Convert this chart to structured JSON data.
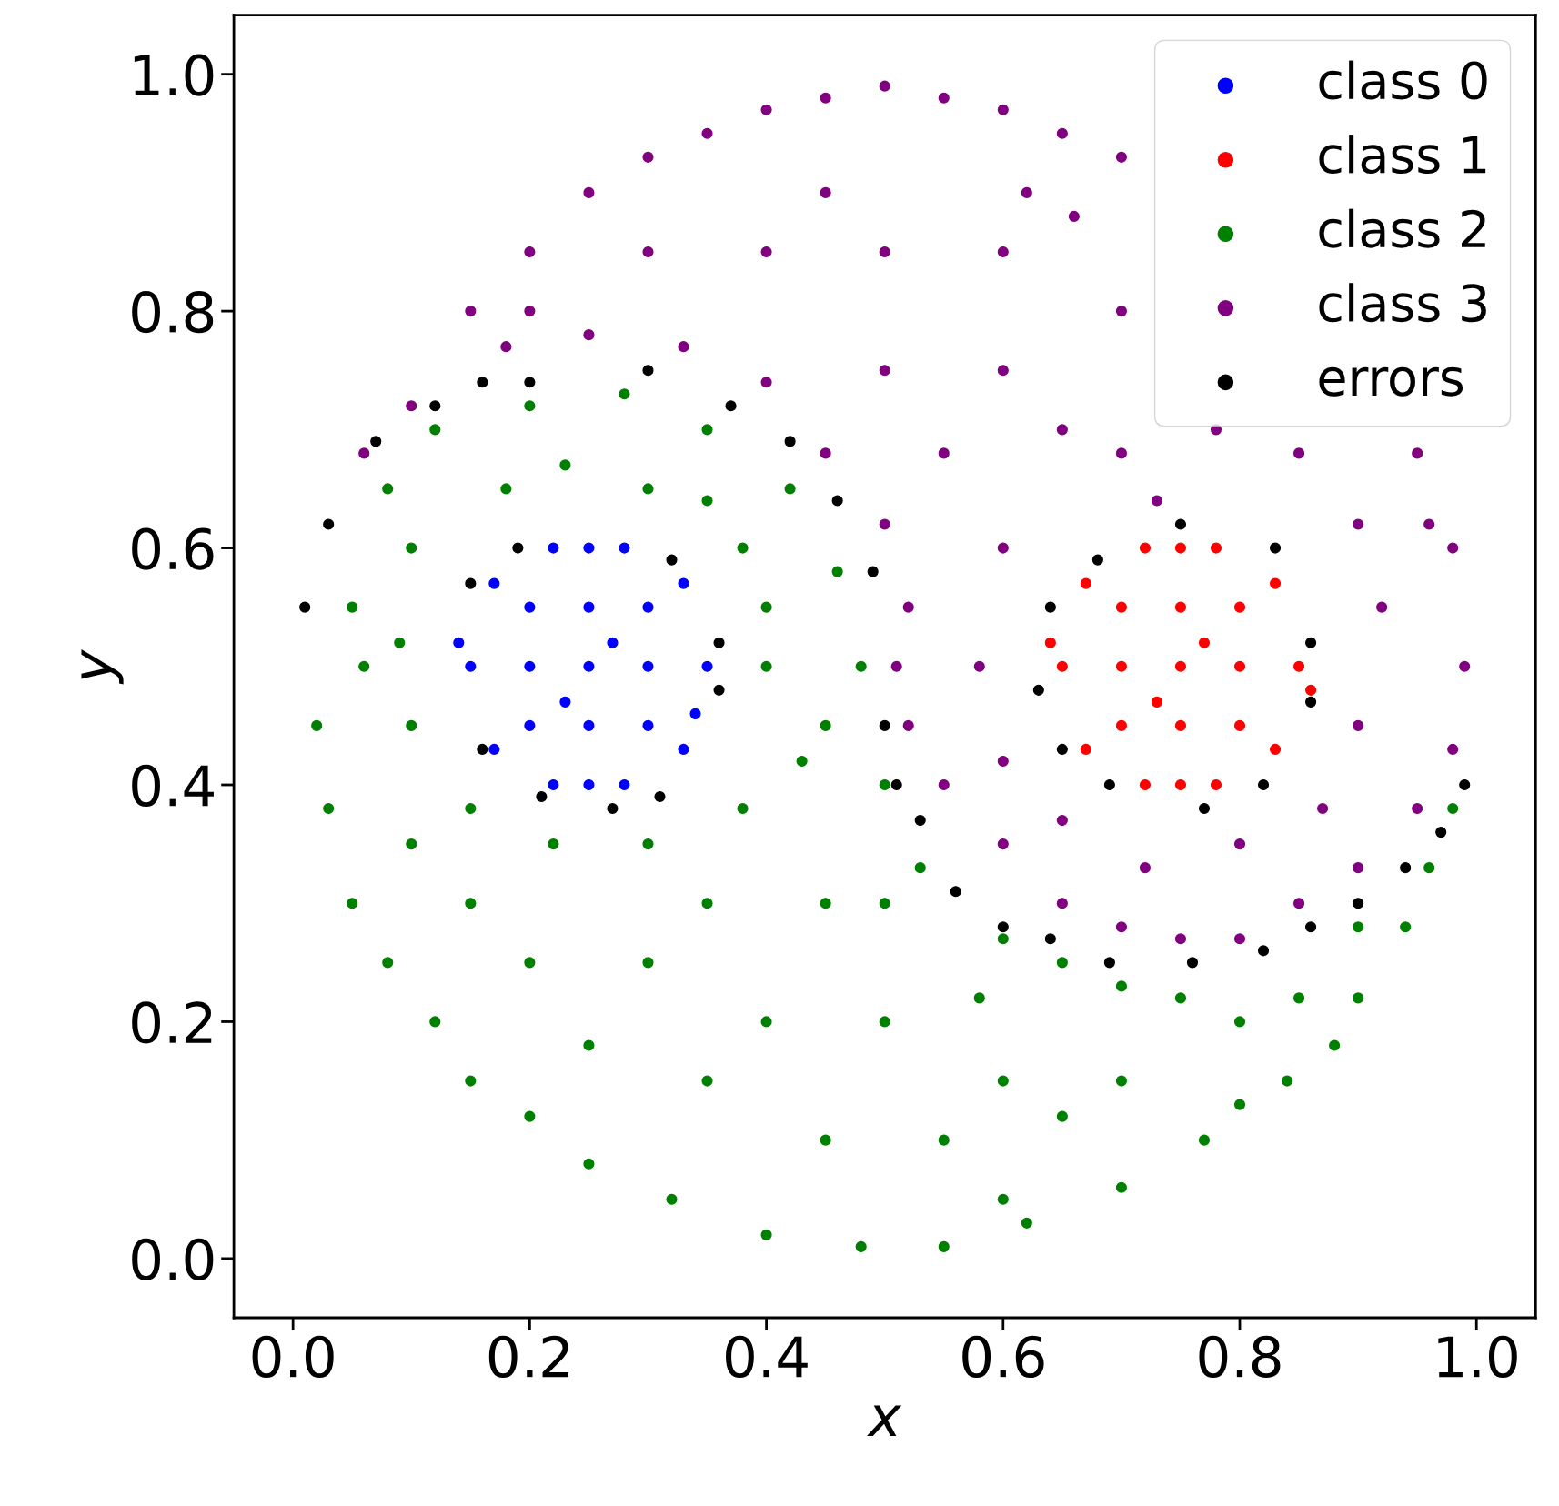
{
  "chart_data": {
    "type": "scatter",
    "xlabel": "x",
    "ylabel": "y",
    "xlim": [
      -0.05,
      1.05
    ],
    "ylim": [
      -0.05,
      1.05
    ],
    "xticks": [
      {
        "value": 0,
        "label": "0.0"
      },
      {
        "value": 0.2,
        "label": "0.2"
      },
      {
        "value": 0.4,
        "label": "0.4"
      },
      {
        "value": 0.6,
        "label": "0.6"
      },
      {
        "value": 0.8,
        "label": "0.8"
      },
      {
        "value": 1,
        "label": "1.0"
      }
    ],
    "yticks": [
      {
        "value": 0,
        "label": "0.0"
      },
      {
        "value": 0.2,
        "label": "0.2"
      },
      {
        "value": 0.4,
        "label": "0.4"
      },
      {
        "value": 0.6,
        "label": "0.6"
      },
      {
        "value": 0.8,
        "label": "0.8"
      },
      {
        "value": 1,
        "label": "1.0"
      }
    ],
    "grid": false,
    "legend": "top right",
    "marker": "circle",
    "series": [
      {
        "name": "class 0",
        "color": "#0000ff",
        "x": [
          0.25,
          0.2,
          0.3,
          0.2,
          0.3,
          0.25,
          0.25,
          0.15,
          0.35,
          0.17,
          0.33,
          0.17,
          0.33,
          0.22,
          0.28,
          0.22,
          0.28,
          0.14,
          0.34,
          0.25,
          0.25,
          0.2,
          0.3,
          0.27,
          0.23
        ],
        "values": [
          0.5,
          0.55,
          0.55,
          0.45,
          0.45,
          0.6,
          0.4,
          0.5,
          0.5,
          0.57,
          0.57,
          0.43,
          0.43,
          0.6,
          0.6,
          0.4,
          0.4,
          0.52,
          0.46,
          0.55,
          0.45,
          0.5,
          0.5,
          0.52,
          0.47
        ]
      },
      {
        "name": "class 1",
        "color": "#ff0000",
        "x": [
          0.75,
          0.7,
          0.8,
          0.7,
          0.8,
          0.75,
          0.75,
          0.65,
          0.85,
          0.67,
          0.83,
          0.67,
          0.83,
          0.72,
          0.78,
          0.72,
          0.78,
          0.64,
          0.86,
          0.75,
          0.75,
          0.7,
          0.8,
          0.77,
          0.73
        ],
        "values": [
          0.5,
          0.55,
          0.55,
          0.45,
          0.45,
          0.6,
          0.4,
          0.5,
          0.5,
          0.57,
          0.57,
          0.43,
          0.43,
          0.6,
          0.6,
          0.4,
          0.4,
          0.52,
          0.48,
          0.55,
          0.45,
          0.5,
          0.5,
          0.52,
          0.47
        ]
      },
      {
        "name": "class 2",
        "color": "#008000",
        "x": [
          0.05,
          0.08,
          0.12,
          0.2,
          0.28,
          0.35,
          0.42,
          0.46,
          0.48,
          0.45,
          0.38,
          0.4,
          0.3,
          0.18,
          0.1,
          0.06,
          0.1,
          0.15,
          0.22,
          0.3,
          0.38,
          0.43,
          0.09,
          0.4,
          0.35,
          0.23,
          0.02,
          0.03,
          0.05,
          0.08,
          0.12,
          0.15,
          0.2,
          0.25,
          0.32,
          0.4,
          0.48,
          0.55,
          0.62,
          0.7,
          0.77,
          0.84,
          0.9,
          0.94,
          0.96,
          0.98,
          0.9,
          0.85,
          0.8,
          0.75,
          0.7,
          0.65,
          0.6,
          0.53,
          0.5,
          0.45,
          0.4,
          0.35,
          0.3,
          0.2,
          0.25,
          0.5,
          0.55,
          0.6,
          0.65,
          0.7,
          0.5,
          0.45,
          0.35,
          0.15,
          0.1,
          0.58,
          0.8,
          0.88,
          0.6
        ],
        "values": [
          0.55,
          0.65,
          0.7,
          0.72,
          0.73,
          0.7,
          0.65,
          0.58,
          0.5,
          0.45,
          0.6,
          0.5,
          0.65,
          0.65,
          0.6,
          0.5,
          0.45,
          0.38,
          0.35,
          0.35,
          0.38,
          0.42,
          0.52,
          0.55,
          0.64,
          0.67,
          0.45,
          0.38,
          0.3,
          0.25,
          0.2,
          0.15,
          0.12,
          0.08,
          0.05,
          0.02,
          0.01,
          0.01,
          0.03,
          0.06,
          0.1,
          0.15,
          0.22,
          0.28,
          0.33,
          0.38,
          0.28,
          0.22,
          0.2,
          0.22,
          0.23,
          0.25,
          0.27,
          0.33,
          0.4,
          0.3,
          0.2,
          0.15,
          0.25,
          0.25,
          0.18,
          0.2,
          0.1,
          0.15,
          0.12,
          0.15,
          0.3,
          0.1,
          0.3,
          0.3,
          0.35,
          0.22,
          0.13,
          0.18,
          0.05
        ]
      },
      {
        "name": "class 3",
        "color": "#800080",
        "x": [
          0.15,
          0.2,
          0.25,
          0.3,
          0.35,
          0.4,
          0.45,
          0.5,
          0.55,
          0.6,
          0.65,
          0.7,
          0.62,
          0.66,
          0.73,
          0.96,
          0.95,
          0.98,
          0.99,
          0.98,
          0.95,
          0.9,
          0.85,
          0.8,
          0.75,
          0.7,
          0.65,
          0.6,
          0.55,
          0.52,
          0.51,
          0.52,
          0.5,
          0.45,
          0.4,
          0.33,
          0.25,
          0.18,
          0.1,
          0.06,
          0.3,
          0.4,
          0.5,
          0.6,
          0.7,
          0.5,
          0.55,
          0.6,
          0.65,
          0.6,
          0.58,
          0.6,
          0.65,
          0.72,
          0.8,
          0.87,
          0.9,
          0.92,
          0.9,
          0.85,
          0.78,
          0.7,
          0.45,
          0.2
        ],
        "values": [
          0.8,
          0.85,
          0.9,
          0.93,
          0.95,
          0.97,
          0.98,
          0.99,
          0.98,
          0.97,
          0.95,
          0.93,
          0.9,
          0.88,
          0.64,
          0.62,
          0.68,
          0.6,
          0.5,
          0.43,
          0.38,
          0.33,
          0.3,
          0.27,
          0.27,
          0.28,
          0.3,
          0.35,
          0.4,
          0.45,
          0.5,
          0.55,
          0.62,
          0.68,
          0.74,
          0.77,
          0.78,
          0.77,
          0.72,
          0.68,
          0.85,
          0.85,
          0.85,
          0.85,
          0.8,
          0.75,
          0.68,
          0.75,
          0.7,
          0.6,
          0.5,
          0.42,
          0.37,
          0.33,
          0.35,
          0.38,
          0.45,
          0.55,
          0.62,
          0.68,
          0.7,
          0.68,
          0.9,
          0.8
        ]
      },
      {
        "name": "errors",
        "color": "#000000",
        "x": [
          0.01,
          0.03,
          0.07,
          0.12,
          0.16,
          0.2,
          0.3,
          0.37,
          0.42,
          0.46,
          0.49,
          0.15,
          0.19,
          0.32,
          0.36,
          0.36,
          0.16,
          0.21,
          0.27,
          0.31,
          0.5,
          0.51,
          0.53,
          0.56,
          0.6,
          0.64,
          0.69,
          0.76,
          0.82,
          0.86,
          0.9,
          0.94,
          0.97,
          0.99,
          0.63,
          0.64,
          0.68,
          0.75,
          0.83,
          0.86,
          0.86,
          0.82,
          0.77,
          0.69,
          0.65
        ],
        "values": [
          0.55,
          0.62,
          0.69,
          0.72,
          0.74,
          0.74,
          0.75,
          0.72,
          0.69,
          0.64,
          0.58,
          0.57,
          0.6,
          0.59,
          0.52,
          0.48,
          0.43,
          0.39,
          0.38,
          0.39,
          0.45,
          0.4,
          0.37,
          0.31,
          0.28,
          0.27,
          0.25,
          0.25,
          0.26,
          0.28,
          0.3,
          0.33,
          0.36,
          0.4,
          0.48,
          0.55,
          0.59,
          0.62,
          0.6,
          0.52,
          0.47,
          0.4,
          0.38,
          0.4,
          0.43
        ]
      }
    ]
  }
}
